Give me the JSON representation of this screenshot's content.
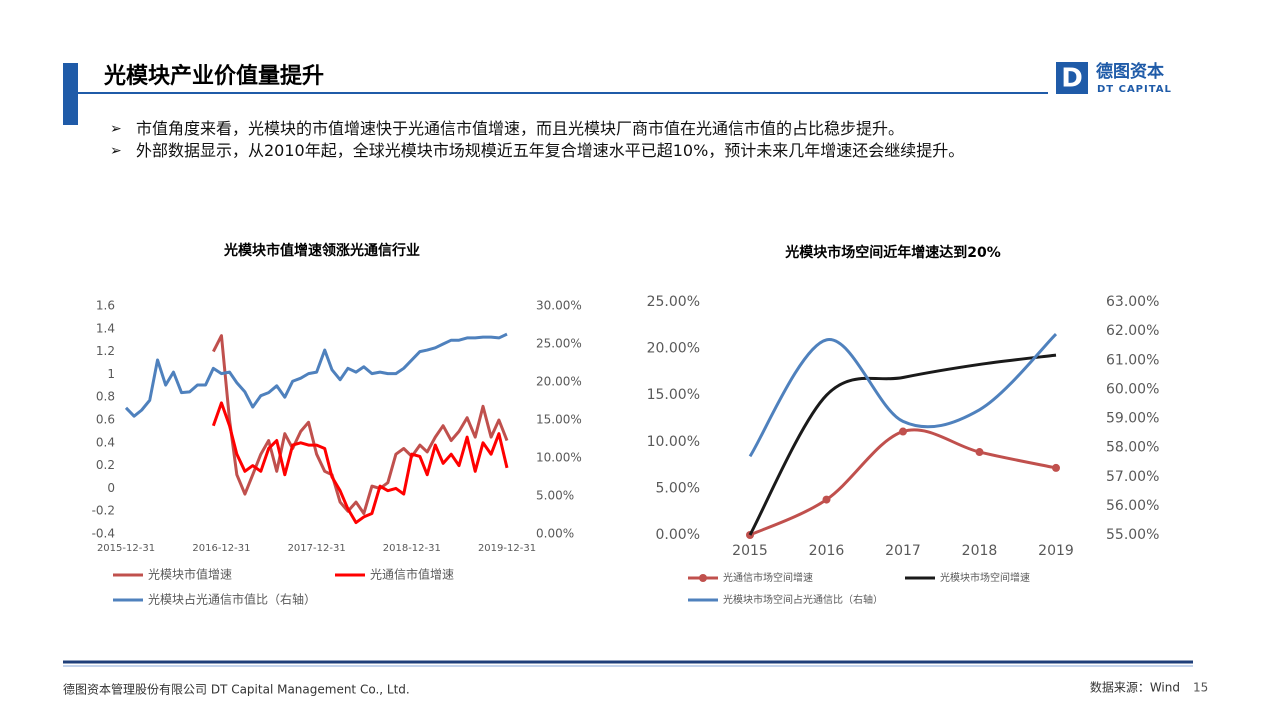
{
  "header": {
    "title": "光模块产业价值量提升",
    "logo_cn": "德图资本",
    "logo_en": "DT CAPITAL"
  },
  "bullets": [
    "市值角度来看，光模块的市值增速快于光通信市值增速，而且光模块厂商市值在光通信市值的占比稳步提升。",
    "外部数据显示，从2010年起，全球光模块市场规模近五年复合增速水平已超10%，预计未来几年增速还会继续提升。"
  ],
  "chart_data": [
    {
      "type": "line",
      "title": "光模块市值增速领涨光通信行业",
      "x": [
        "2015-12-31",
        "2016-01-31",
        "2016-02-29",
        "2016-03-31",
        "2016-04-30",
        "2016-05-31",
        "2016-06-30",
        "2016-07-31",
        "2016-08-31",
        "2016-09-30",
        "2016-10-31",
        "2016-11-30",
        "2016-12-31",
        "2017-01-31",
        "2017-02-28",
        "2017-03-31",
        "2017-04-30",
        "2017-05-31",
        "2017-06-30",
        "2017-07-31",
        "2017-08-31",
        "2017-09-30",
        "2017-10-31",
        "2017-11-30",
        "2017-12-31",
        "2018-01-31",
        "2018-02-28",
        "2018-03-31",
        "2018-04-30",
        "2018-05-31",
        "2018-06-30",
        "2018-07-31",
        "2018-08-31",
        "2018-09-30",
        "2018-10-31",
        "2018-11-30",
        "2018-12-31",
        "2019-01-31",
        "2019-02-28",
        "2019-03-31",
        "2019-04-30",
        "2019-05-31",
        "2019-06-30",
        "2019-07-31",
        "2019-08-31",
        "2019-09-30",
        "2019-10-31",
        "2019-11-30",
        "2019-12-31"
      ],
      "xlim": [
        "2015-12-31",
        "2019-12-31"
      ],
      "xticks": [
        "2015-12-31",
        "2016-12-31",
        "2017-12-31",
        "2018-12-31",
        "2019-12-31"
      ],
      "ylim": [
        -0.4,
        1.6
      ],
      "yticks": [
        -0.4,
        -0.2,
        0,
        0.2,
        0.4,
        0.6,
        0.8,
        1,
        1.2,
        1.4,
        1.6
      ],
      "y2lim": [
        0,
        30
      ],
      "y2ticks": [
        {
          "value": 0,
          "label": "0.00%"
        },
        {
          "value": 5,
          "label": "5.00%"
        },
        {
          "value": 10,
          "label": "10.00%"
        },
        {
          "value": 15,
          "label": "15.00%"
        },
        {
          "value": 20,
          "label": "20.00%"
        },
        {
          "value": 25,
          "label": "25.00%"
        },
        {
          "value": 30,
          "label": "30.00%"
        }
      ],
      "series": [
        {
          "name": "光模块市值增速",
          "color": "#c0504d",
          "values": [
            null,
            null,
            null,
            null,
            null,
            null,
            null,
            null,
            null,
            null,
            null,
            1.2,
            1.34,
            0.6,
            0.12,
            -0.05,
            0.12,
            0.3,
            0.42,
            0.15,
            0.48,
            0.35,
            0.5,
            0.58,
            0.3,
            0.15,
            0.12,
            -0.12,
            -0.2,
            -0.12,
            -0.22,
            0.02,
            0.0,
            0.05,
            0.3,
            0.35,
            0.28,
            0.38,
            0.32,
            0.45,
            0.55,
            0.42,
            0.5,
            0.62,
            0.45,
            0.72,
            0.45,
            0.6,
            0.42
          ]
        },
        {
          "name": "光通信市值增速",
          "color": "#ff0000",
          "values": [
            null,
            null,
            null,
            null,
            null,
            null,
            null,
            null,
            null,
            null,
            null,
            0.55,
            0.75,
            0.55,
            0.3,
            0.15,
            0.2,
            0.15,
            0.35,
            0.42,
            0.12,
            0.38,
            0.4,
            0.38,
            0.38,
            0.35,
            0.1,
            -0.02,
            -0.18,
            -0.3,
            -0.25,
            -0.22,
            0.02,
            -0.02,
            0.0,
            -0.05,
            0.3,
            0.28,
            0.12,
            0.38,
            0.22,
            0.3,
            0.2,
            0.45,
            0.15,
            0.4,
            0.3,
            0.48,
            0.18
          ]
        },
        {
          "name": "光模块占光通信市值比（右轴）",
          "color": "#4f81bd",
          "axis": "y2",
          "values": [
            16.6,
            15.5,
            16.3,
            17.6,
            22.9,
            19.6,
            21.3,
            18.6,
            18.7,
            19.6,
            19.6,
            21.8,
            21.1,
            21.3,
            19.9,
            18.7,
            16.7,
            18.2,
            18.6,
            19.5,
            18.0,
            20.1,
            20.5,
            21.1,
            21.3,
            24.2,
            21.6,
            20.3,
            21.8,
            21.3,
            22.0,
            21.1,
            21.3,
            21.1,
            21.1,
            21.8,
            22.9,
            24.0,
            24.2,
            24.5,
            25.0,
            25.5,
            25.5,
            25.8,
            25.8,
            25.9,
            25.9,
            25.8,
            26.3
          ]
        }
      ]
    },
    {
      "type": "line",
      "title": "光模块市场空间近年增速达到20%",
      "smooth": true,
      "categories": [
        "2015",
        "2016",
        "2017",
        "2018",
        "2019"
      ],
      "ylim": [
        0,
        25
      ],
      "yticks": [
        {
          "value": 0,
          "label": "0.00%"
        },
        {
          "value": 5,
          "label": "5.00%"
        },
        {
          "value": 10,
          "label": "10.00%"
        },
        {
          "value": 15,
          "label": "15.00%"
        },
        {
          "value": 20,
          "label": "20.00%"
        },
        {
          "value": 25,
          "label": "25.00%"
        }
      ],
      "y2lim": [
        55,
        63
      ],
      "y2ticks": [
        {
          "value": 55,
          "label": "55.00%"
        },
        {
          "value": 56,
          "label": "56.00%"
        },
        {
          "value": 57,
          "label": "57.00%"
        },
        {
          "value": 58,
          "label": "58.00%"
        },
        {
          "value": 59,
          "label": "59.00%"
        },
        {
          "value": 60,
          "label": "60.00%"
        },
        {
          "value": 61,
          "label": "61.00%"
        },
        {
          "value": 62,
          "label": "62.00%"
        },
        {
          "value": 63,
          "label": "63.00%"
        }
      ],
      "series": [
        {
          "name": "光通信市场空间增速",
          "color": "#c0504d",
          "marker": "circle",
          "values": [
            0,
            3.8,
            11.1,
            8.9,
            7.2
          ]
        },
        {
          "name": "光模块市场空间增速",
          "color": "#1a1a1a",
          "values": [
            0,
            15.0,
            16.9,
            18.3,
            19.3
          ]
        },
        {
          "name": "光模块市场空间占光通信比（右轴）",
          "color": "#4f81bd",
          "axis": "y2",
          "values": [
            57.7,
            61.7,
            58.9,
            59.3,
            61.9
          ]
        }
      ]
    }
  ],
  "footer": {
    "company": "德图资本管理股份有限公司  DT Capital  Management  Co., Ltd.",
    "source": "数据来源：Wind",
    "page": "15"
  }
}
